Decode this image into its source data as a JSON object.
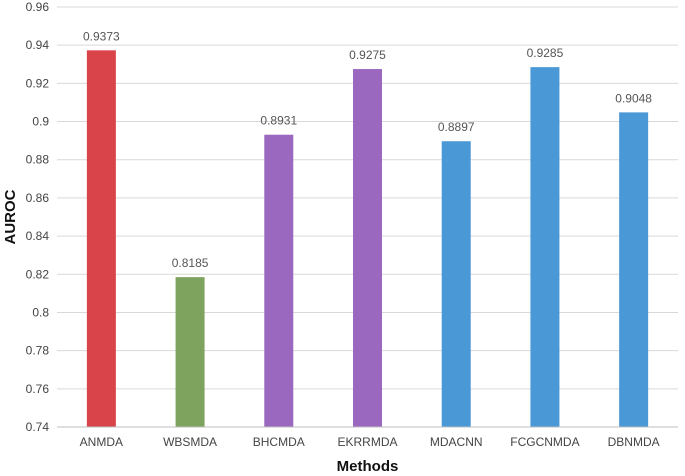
{
  "chart_data": {
    "type": "bar",
    "categories": [
      "ANMDA",
      "WBSMDA",
      "BHCMDA",
      "EKRRMDA",
      "MDACNN",
      "FCGCNMDA",
      "DBNMDA"
    ],
    "values": [
      0.9373,
      0.8185,
      0.8931,
      0.9275,
      0.8897,
      0.9285,
      0.9048
    ],
    "data_labels": [
      "0.9373",
      "0.8185",
      "0.8931",
      "0.9275",
      "0.8897",
      "0.9285",
      "0.9048"
    ],
    "bar_colors": [
      "#d9444a",
      "#7ea35e",
      "#9b68bf",
      "#9b68bf",
      "#4a98d6",
      "#4a98d6",
      "#4a98d6"
    ],
    "xlabel": "Methods",
    "ylabel": "AUROC",
    "ylim": [
      0.74,
      0.96
    ],
    "yticks": [
      0.74,
      0.76,
      0.78,
      0.8,
      0.82,
      0.84,
      0.86,
      0.88,
      0.9,
      0.92,
      0.94,
      0.96
    ],
    "ytick_labels": [
      "0.74",
      "0.76",
      "0.78",
      "0.8",
      "0.82",
      "0.84",
      "0.86",
      "0.88",
      "0.9",
      "0.92",
      "0.94",
      "0.96"
    ],
    "grid": true,
    "legend": "none"
  }
}
